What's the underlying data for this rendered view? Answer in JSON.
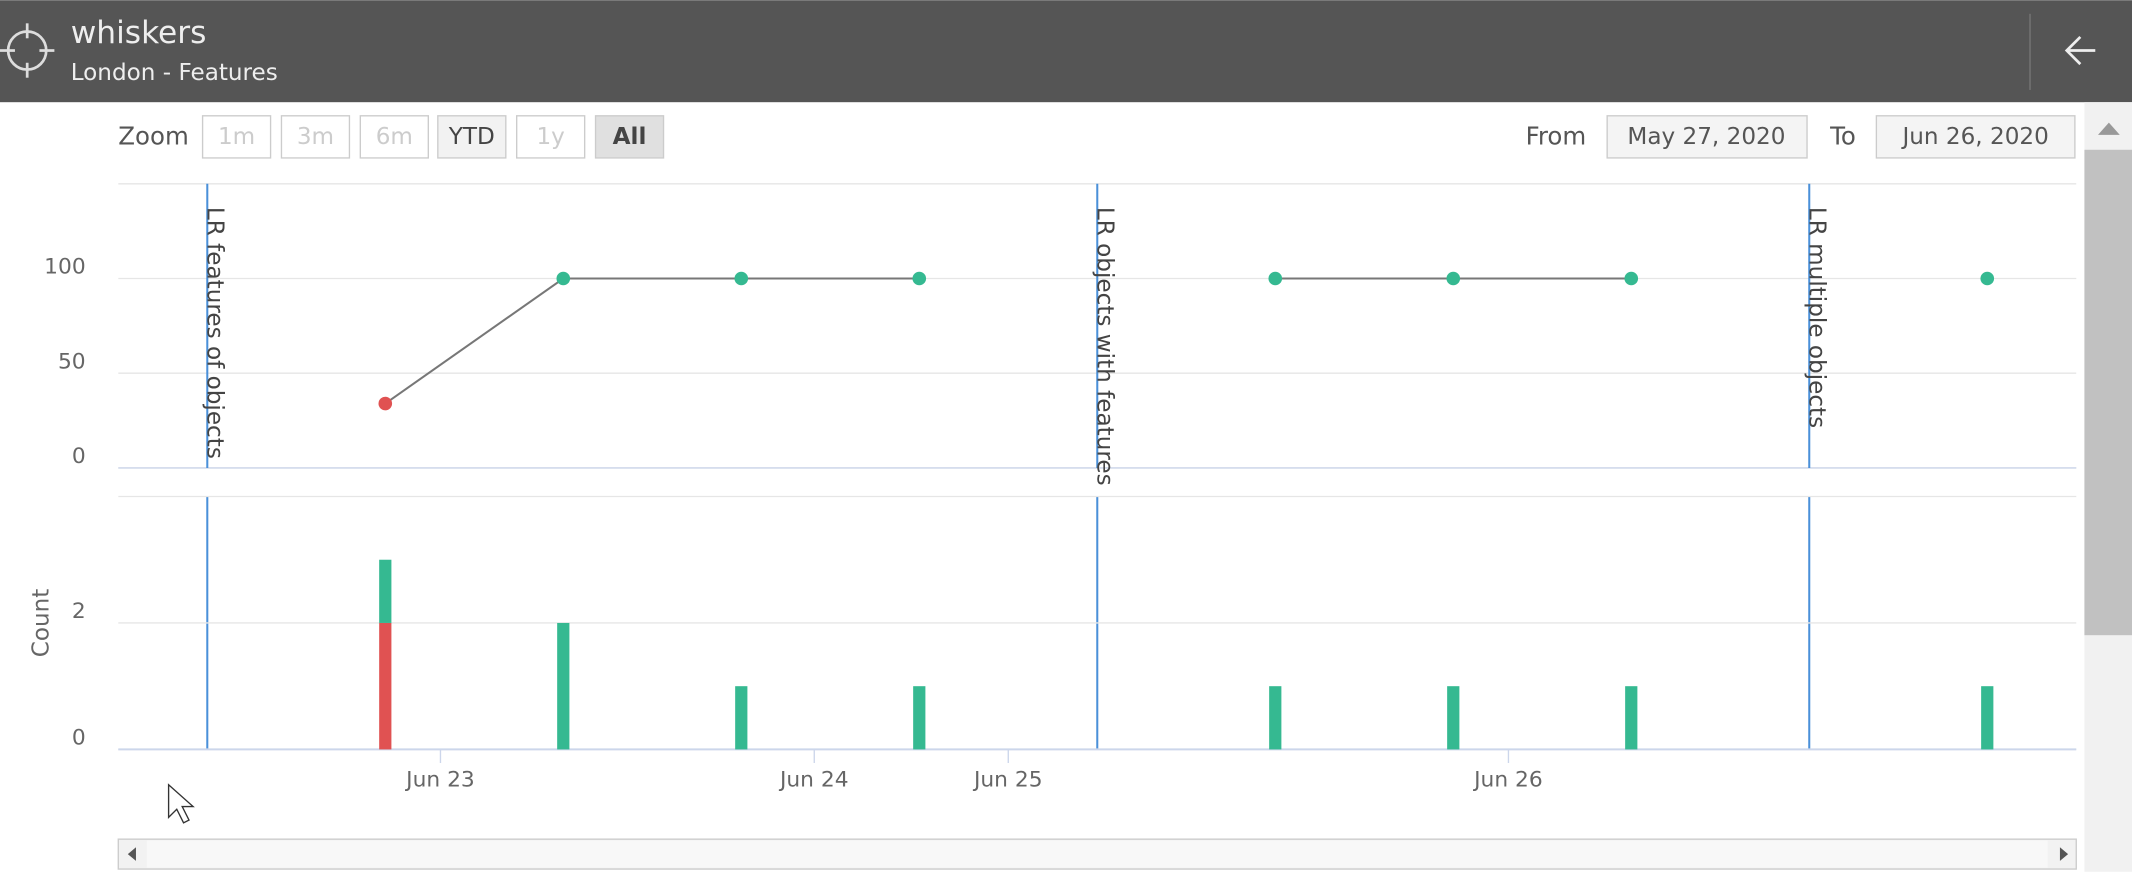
{
  "header": {
    "title": "whiskers",
    "subtitle": "London - Features"
  },
  "zoom": {
    "label": "Zoom",
    "buttons": [
      "1m",
      "3m",
      "6m",
      "YTD",
      "1y",
      "All"
    ],
    "active": 5,
    "disabled": [
      0,
      1,
      2,
      4
    ]
  },
  "range": {
    "from_label": "From",
    "from": "May 27, 2020",
    "to_label": "To",
    "to": "Jun 26, 2020"
  },
  "chart_data": [
    {
      "type": "line",
      "x": [
        0,
        1,
        2,
        3,
        4,
        5,
        6,
        7,
        8,
        9
      ],
      "values": [
        34,
        100,
        100,
        100,
        null,
        100,
        100,
        100,
        null,
        100
      ],
      "point_colors": [
        "#e05252",
        "#35b991",
        "#35b991",
        "#35b991",
        null,
        "#35b991",
        "#35b991",
        "#35b991",
        null,
        "#35b991"
      ],
      "color": "#777777",
      "xlim": [
        -1.5,
        9.5
      ],
      "ylim": [
        0,
        150
      ],
      "yticks": [
        0,
        50,
        100
      ],
      "grid": true,
      "flags": [
        {
          "x": -1,
          "label": "LR features of objects"
        },
        {
          "x": 4,
          "label": "LR objects with features"
        },
        {
          "x": 8,
          "label": "LR multiple objects"
        }
      ],
      "flag_color": "#4a90d9"
    },
    {
      "type": "bar",
      "y_label": "Count",
      "x": [
        0,
        1,
        2,
        3,
        4,
        5,
        6,
        7,
        8,
        9
      ],
      "series": [
        {
          "color": "#e05252",
          "values": [
            2,
            0,
            0,
            0,
            null,
            0,
            0,
            0,
            null,
            0
          ]
        },
        {
          "color": "#35b991",
          "values": [
            1,
            2,
            1,
            1,
            null,
            1,
            1,
            1,
            null,
            1
          ]
        }
      ],
      "xlim": [
        -1.5,
        9.5
      ],
      "ylim": [
        0,
        4
      ],
      "yticks": [
        0,
        2
      ],
      "xticks": [
        {
          "value": 0.31,
          "label": "Jun 23"
        },
        {
          "value": 2.41,
          "label": "Jun 24"
        },
        {
          "value": 3.5,
          "label": "Jun 25"
        },
        {
          "value": 6.31,
          "label": "Jun 26"
        }
      ],
      "grid": true
    }
  ]
}
